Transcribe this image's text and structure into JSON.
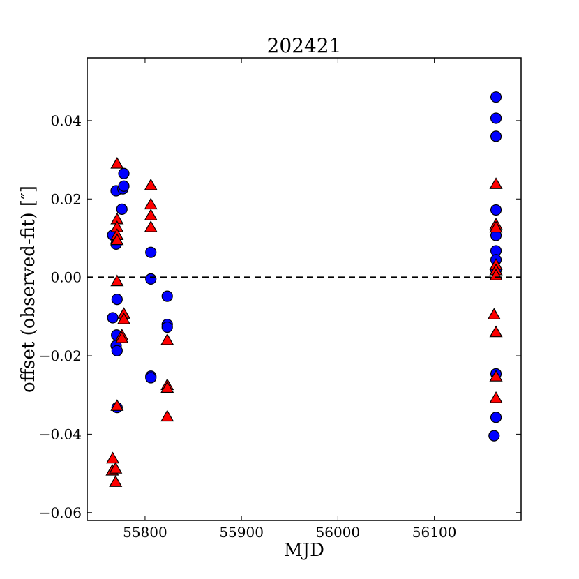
{
  "chart_data": {
    "type": "scatter",
    "title": "202421",
    "xlabel": "MJD",
    "ylabel": "offset (observed-fit) [″]",
    "xlim": [
      55740,
      56190
    ],
    "ylim": [
      -0.062,
      0.056
    ],
    "xticks": [
      55800,
      55900,
      56000,
      56100
    ],
    "xtick_labels": [
      "55800",
      "55900",
      "56000",
      "56100"
    ],
    "yticks": [
      -0.06,
      -0.04,
      -0.02,
      0.0,
      0.02,
      0.04
    ],
    "ytick_labels": [
      "−0.06",
      "−0.04",
      "−0.02",
      "0.00",
      "0.02",
      "0.04"
    ],
    "reference_line": {
      "y": 0.0,
      "style": "dashed",
      "color": "#000000"
    },
    "grid": false,
    "legend": "none",
    "series": [
      {
        "marker": "circle",
        "color": "#0000ff",
        "points": [
          [
            55766.5,
            0.0108
          ],
          [
            55766.5,
            -0.0103
          ],
          [
            55770,
            0.0221
          ],
          [
            55770,
            0.0085
          ],
          [
            55770.5,
            -0.0147
          ],
          [
            55770,
            -0.0174
          ],
          [
            55771,
            -0.0056
          ],
          [
            55771,
            -0.0187
          ],
          [
            55771,
            -0.0332
          ],
          [
            55776,
            0.0174
          ],
          [
            55777,
            0.0226
          ],
          [
            55778,
            0.0233
          ],
          [
            55778,
            0.0265
          ],
          [
            55806,
            0.0064
          ],
          [
            55806,
            -0.0004
          ],
          [
            55806,
            -0.0252
          ],
          [
            55806,
            -0.0256
          ],
          [
            55823,
            -0.0048
          ],
          [
            55823,
            -0.012
          ],
          [
            55823,
            -0.0127
          ],
          [
            56164,
            0.046
          ],
          [
            56164,
            0.0406
          ],
          [
            56164,
            0.036
          ],
          [
            56164,
            0.0172
          ],
          [
            56164,
            0.0107
          ],
          [
            56164,
            0.0068
          ],
          [
            56164,
            0.0045
          ],
          [
            56164,
            0.0018
          ],
          [
            56164,
            -0.0246
          ],
          [
            56164,
            -0.0357
          ],
          [
            56162,
            -0.0404
          ]
        ]
      },
      {
        "marker": "triangle",
        "color": "#ff0000",
        "points": [
          [
            55771,
            0.029
          ],
          [
            55771,
            0.0148
          ],
          [
            55771,
            0.0128
          ],
          [
            55771,
            0.0108
          ],
          [
            55771,
            0.0095
          ],
          [
            55771,
            -0.001
          ],
          [
            55771,
            -0.0328
          ],
          [
            55766.5,
            -0.0462
          ],
          [
            55766,
            -0.0493
          ],
          [
            55769.5,
            -0.0488
          ],
          [
            55769.5,
            -0.0522
          ],
          [
            55778,
            -0.0093
          ],
          [
            55778,
            -0.0107
          ],
          [
            55776,
            -0.0148
          ],
          [
            55776,
            -0.0155
          ],
          [
            55806,
            0.0235
          ],
          [
            55806,
            0.0186
          ],
          [
            55806,
            0.0158
          ],
          [
            55806,
            0.0128
          ],
          [
            55823,
            -0.016
          ],
          [
            55823,
            -0.0275
          ],
          [
            55823,
            -0.0282
          ],
          [
            55823,
            -0.0355
          ],
          [
            56164,
            0.0238
          ],
          [
            56164,
            0.0135
          ],
          [
            56164,
            0.0127
          ],
          [
            56164,
            0.0032
          ],
          [
            56164,
            0.0018
          ],
          [
            56164,
            0.0005
          ],
          [
            56162,
            -0.0095
          ],
          [
            56164,
            -0.014
          ],
          [
            56164,
            -0.0253
          ],
          [
            56164,
            -0.0308
          ]
        ]
      }
    ]
  }
}
